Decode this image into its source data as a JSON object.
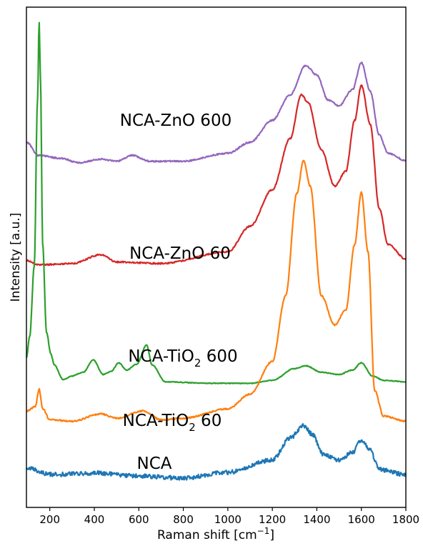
{
  "chart_data": {
    "type": "line",
    "xlabel_main": "Raman shift [cm",
    "xlabel_sup": "−1",
    "xlabel_end": "]",
    "ylabel": "Intensity [a.u.]",
    "xlim": [
      95,
      1800
    ],
    "x_ticks": [
      200,
      400,
      600,
      800,
      1000,
      1200,
      1400,
      1600,
      1800
    ],
    "y_ticks_shown": false,
    "grid": false,
    "legend": "none",
    "series": [
      {
        "label_main": "NCA-ZnO 600",
        "label_sub": "",
        "label_tail": "",
        "color": "#9467bd",
        "noise": 2,
        "points": [
          [
            95,
            4.9
          ],
          [
            150,
            4.72
          ],
          [
            250,
            4.68
          ],
          [
            330,
            4.62
          ],
          [
            430,
            4.67
          ],
          [
            500,
            4.64
          ],
          [
            570,
            4.72
          ],
          [
            650,
            4.64
          ],
          [
            800,
            4.64
          ],
          [
            1000,
            4.75
          ],
          [
            1100,
            4.9
          ],
          [
            1200,
            5.2
          ],
          [
            1280,
            5.55
          ],
          [
            1350,
            5.95
          ],
          [
            1400,
            5.82
          ],
          [
            1450,
            5.48
          ],
          [
            1500,
            5.4
          ],
          [
            1560,
            5.62
          ],
          [
            1600,
            5.99
          ],
          [
            1640,
            5.6
          ],
          [
            1680,
            5.0
          ],
          [
            1720,
            4.75
          ],
          [
            1800,
            4.65
          ]
        ]
      },
      {
        "label_main": "NCA-ZnO 60",
        "label_sub": "",
        "label_tail": "",
        "color": "#d62728",
        "noise": 2,
        "points": [
          [
            95,
            3.28
          ],
          [
            150,
            3.22
          ],
          [
            300,
            3.24
          ],
          [
            430,
            3.36
          ],
          [
            500,
            3.26
          ],
          [
            700,
            3.24
          ],
          [
            1000,
            3.4
          ],
          [
            1100,
            3.75
          ],
          [
            1200,
            4.25
          ],
          [
            1280,
            4.95
          ],
          [
            1330,
            5.55
          ],
          [
            1360,
            5.45
          ],
          [
            1420,
            4.8
          ],
          [
            1480,
            4.3
          ],
          [
            1530,
            4.5
          ],
          [
            1570,
            5.2
          ],
          [
            1600,
            5.68
          ],
          [
            1640,
            5.15
          ],
          [
            1680,
            4.0
          ],
          [
            1720,
            3.5
          ],
          [
            1800,
            3.3
          ]
        ]
      },
      {
        "label_main": "NCA-TiO",
        "label_sub": "2",
        "label_tail": " 600",
        "color": "#2ca02c",
        "noise": 1,
        "points": [
          [
            95,
            1.95
          ],
          [
            110,
            2.25
          ],
          [
            130,
            3.2
          ],
          [
            145,
            5.5
          ],
          [
            152,
            6.55
          ],
          [
            158,
            5.8
          ],
          [
            168,
            3.5
          ],
          [
            185,
            2.3
          ],
          [
            205,
            2.0
          ],
          [
            220,
            1.85
          ],
          [
            260,
            1.65
          ],
          [
            300,
            1.7
          ],
          [
            350,
            1.75
          ],
          [
            395,
            1.92
          ],
          [
            440,
            1.72
          ],
          [
            475,
            1.76
          ],
          [
            510,
            1.88
          ],
          [
            545,
            1.78
          ],
          [
            590,
            1.86
          ],
          [
            635,
            2.12
          ],
          [
            660,
            1.85
          ],
          [
            720,
            1.62
          ],
          [
            900,
            1.6
          ],
          [
            1100,
            1.6
          ],
          [
            1200,
            1.64
          ],
          [
            1300,
            1.8
          ],
          [
            1350,
            1.84
          ],
          [
            1420,
            1.75
          ],
          [
            1500,
            1.72
          ],
          [
            1560,
            1.78
          ],
          [
            1600,
            1.88
          ],
          [
            1650,
            1.7
          ],
          [
            1700,
            1.64
          ],
          [
            1800,
            1.62
          ]
        ]
      },
      {
        "label_main": "NCA-TiO",
        "label_sub": "2",
        "label_tail": " 60",
        "color": "#ff7f0e",
        "noise": 2,
        "points": [
          [
            95,
            1.22
          ],
          [
            135,
            1.28
          ],
          [
            152,
            1.52
          ],
          [
            168,
            1.25
          ],
          [
            200,
            1.1
          ],
          [
            300,
            1.08
          ],
          [
            430,
            1.18
          ],
          [
            500,
            1.12
          ],
          [
            620,
            1.22
          ],
          [
            700,
            1.1
          ],
          [
            800,
            1.12
          ],
          [
            1000,
            1.25
          ],
          [
            1100,
            1.45
          ],
          [
            1200,
            1.9
          ],
          [
            1260,
            2.8
          ],
          [
            1310,
            4.2
          ],
          [
            1340,
            4.65
          ],
          [
            1370,
            4.3
          ],
          [
            1420,
            2.8
          ],
          [
            1480,
            2.4
          ],
          [
            1530,
            2.6
          ],
          [
            1570,
            3.5
          ],
          [
            1600,
            4.22
          ],
          [
            1630,
            3.4
          ],
          [
            1660,
            1.5
          ],
          [
            1700,
            1.15
          ],
          [
            1800,
            1.08
          ]
        ]
      },
      {
        "label_main": "NCA",
        "label_sub": "",
        "label_tail": "",
        "color": "#1f77b4",
        "noise": 6,
        "points": [
          [
            95,
            0.45
          ],
          [
            200,
            0.35
          ],
          [
            400,
            0.37
          ],
          [
            600,
            0.33
          ],
          [
            800,
            0.3
          ],
          [
            1000,
            0.38
          ],
          [
            1200,
            0.55
          ],
          [
            1280,
            0.85
          ],
          [
            1340,
            1.02
          ],
          [
            1380,
            0.9
          ],
          [
            1430,
            0.62
          ],
          [
            1500,
            0.55
          ],
          [
            1560,
            0.65
          ],
          [
            1600,
            0.82
          ],
          [
            1640,
            0.68
          ],
          [
            1680,
            0.42
          ],
          [
            1800,
            0.35
          ]
        ]
      }
    ]
  }
}
